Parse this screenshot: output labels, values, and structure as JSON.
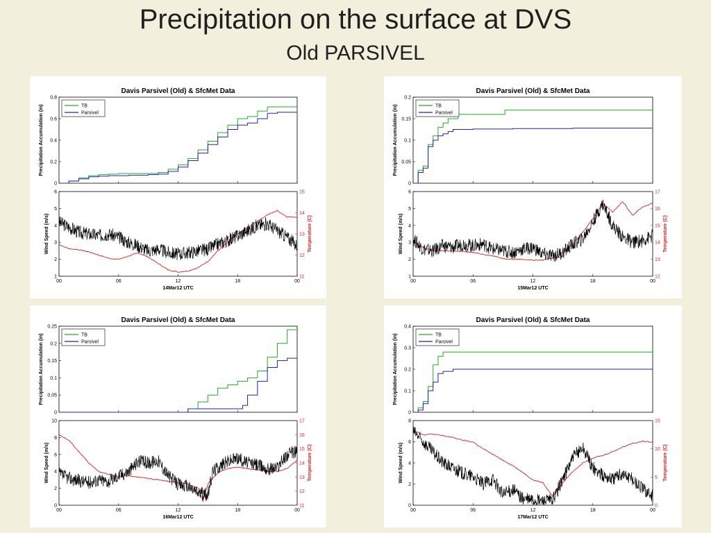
{
  "slide": {
    "title": "Precipitation on the surface at DVS",
    "subtitle": "Old PARSIVEL"
  },
  "colors": {
    "tb": "#20b020",
    "parsivel": "#2020c0",
    "wind": "#000000",
    "temp": "#e02020",
    "background": "#f2f0dc"
  },
  "chart_data": [
    {
      "type": "line",
      "title": "Davis Parsivel (Old) & SfcMet Data",
      "date_label": "14Mar12 UTC",
      "legend": [
        "TB",
        "Parsivel"
      ],
      "legend_position": "top-left",
      "x_ticks": [
        "00",
        "06",
        "12",
        "18",
        "00"
      ],
      "xlim": [
        0,
        24
      ],
      "top": {
        "ylabel": "Precipitation Accumulation (in)",
        "ylim": [
          0,
          0.8
        ],
        "yticks": [
          "0",
          "0.2",
          "0.4",
          "0.6",
          "0.8"
        ],
        "series": [
          {
            "name": "TB",
            "x": [
              0,
              1,
              2,
              3,
              4,
              5,
              6,
              7,
              8,
              9,
              10,
              11,
              12,
              13,
              14,
              15,
              16,
              17,
              18,
              19,
              20,
              21,
              22,
              23,
              24
            ],
            "values": [
              0,
              0.02,
              0.05,
              0.07,
              0.08,
              0.085,
              0.09,
              0.09,
              0.09,
              0.09,
              0.1,
              0.13,
              0.17,
              0.23,
              0.31,
              0.39,
              0.47,
              0.54,
              0.6,
              0.62,
              0.67,
              0.71,
              0.71,
              0.71,
              0.71
            ]
          },
          {
            "name": "Parsivel",
            "x": [
              0,
              1,
              2,
              3,
              4,
              5,
              6,
              7,
              8,
              9,
              10,
              11,
              12,
              13,
              14,
              15,
              16,
              17,
              18,
              19,
              20,
              21,
              22,
              23,
              24
            ],
            "values": [
              0,
              0.02,
              0.04,
              0.06,
              0.065,
              0.07,
              0.07,
              0.075,
              0.075,
              0.08,
              0.085,
              0.11,
              0.15,
              0.21,
              0.28,
              0.36,
              0.43,
              0.5,
              0.54,
              0.56,
              0.6,
              0.65,
              0.66,
              0.66,
              0.66
            ]
          }
        ]
      },
      "bottom": {
        "ylabel": "Wind Speed (m/s)",
        "ylim": [
          1,
          6
        ],
        "yticks": [
          "1",
          "2",
          "3",
          "4",
          "5",
          "6"
        ],
        "y2label": "Temperature (C)",
        "y2lim": [
          11,
          15
        ],
        "y2ticks": [
          "11",
          "12",
          "13",
          "14",
          "15"
        ],
        "wind": {
          "x": [
            0,
            1,
            2,
            3,
            4,
            5,
            6,
            7,
            8,
            9,
            10,
            11,
            12,
            13,
            14,
            15,
            16,
            17,
            18,
            19,
            20,
            21,
            22,
            23,
            24
          ],
          "values": [
            4.2,
            3.9,
            3.6,
            3.5,
            3.4,
            3.5,
            3.3,
            3.0,
            2.8,
            2.5,
            2.6,
            2.4,
            2.3,
            2.4,
            2.5,
            2.6,
            2.9,
            3.1,
            3.4,
            3.7,
            4.0,
            4.1,
            3.7,
            3.3,
            2.8
          ]
        },
        "temp": {
          "x": [
            0,
            1,
            2,
            3,
            4,
            5,
            6,
            7,
            8,
            9,
            10,
            11,
            12,
            13,
            14,
            15,
            16,
            17,
            18,
            19,
            20,
            21,
            22,
            23,
            24
          ],
          "values": [
            12.5,
            12.3,
            12.25,
            12.15,
            12.0,
            11.85,
            11.8,
            11.95,
            12.1,
            11.9,
            11.6,
            11.3,
            11.2,
            11.25,
            11.4,
            11.7,
            12.2,
            12.6,
            13.0,
            13.3,
            13.6,
            13.9,
            14.1,
            13.8,
            13.8
          ]
        }
      }
    },
    {
      "type": "line",
      "title": "Davis Parsivel (Old) & SfcMet Data",
      "date_label": "15Mar12 UTC",
      "legend": [
        "TB",
        "Parsivel"
      ],
      "legend_position": "top-left",
      "x_ticks": [
        "00",
        "06",
        "12",
        "18",
        "00"
      ],
      "xlim": [
        0,
        24
      ],
      "top": {
        "ylabel": "Precipitation Accumulation (in)",
        "ylim": [
          0,
          0.2
        ],
        "yticks": [
          "0",
          "0.05",
          "0.1",
          "0.15",
          "0.2"
        ],
        "series": [
          {
            "name": "TB",
            "x": [
              0,
              0.5,
              1,
              1.5,
              2,
              2.5,
              3,
              3.5,
              4,
              4.5,
              5,
              9,
              9.2,
              24
            ],
            "values": [
              0,
              0.03,
              0.04,
              0.09,
              0.11,
              0.13,
              0.14,
              0.15,
              0.15,
              0.16,
              0.16,
              0.16,
              0.17,
              0.17
            ]
          },
          {
            "name": "Parsivel",
            "x": [
              0,
              0.5,
              1,
              1.5,
              2,
              2.5,
              3,
              3.5,
              4,
              6,
              10,
              16,
              24
            ],
            "values": [
              0,
              0.025,
              0.035,
              0.085,
              0.1,
              0.11,
              0.115,
              0.12,
              0.125,
              0.126,
              0.127,
              0.128,
              0.128
            ]
          }
        ]
      },
      "bottom": {
        "ylabel": "Wind Speed (m/s)",
        "ylim": [
          1,
          6
        ],
        "yticks": [
          "1",
          "2",
          "3",
          "4",
          "5",
          "6"
        ],
        "y2label": "Temperature (C)",
        "y2lim": [
          12,
          17
        ],
        "y2ticks": [
          "12",
          "13",
          "14",
          "15",
          "16",
          "17"
        ],
        "wind": {
          "x": [
            0,
            1,
            2,
            3,
            4,
            5,
            6,
            7,
            8,
            9,
            10,
            11,
            12,
            13,
            14,
            15,
            16,
            17,
            18,
            19,
            20,
            21,
            22,
            23,
            24
          ],
          "values": [
            3.2,
            2.6,
            2.5,
            2.8,
            2.7,
            2.9,
            2.8,
            2.9,
            2.6,
            2.5,
            2.4,
            2.6,
            2.7,
            2.3,
            2.2,
            2.4,
            2.9,
            3.2,
            4.2,
            5.3,
            4.0,
            3.3,
            3.0,
            3.1,
            3.4
          ]
        },
        "temp": {
          "x": [
            0,
            1,
            2,
            3,
            4,
            5,
            6,
            7,
            8,
            9,
            10,
            11,
            12,
            13,
            14,
            15,
            16,
            17,
            18,
            19,
            20,
            21,
            22,
            23,
            24
          ],
          "values": [
            14.0,
            13.7,
            13.5,
            13.5,
            13.5,
            13.45,
            13.4,
            13.3,
            13.2,
            13.05,
            13.0,
            13.0,
            12.95,
            12.95,
            13.1,
            13.4,
            13.9,
            14.6,
            15.4,
            16.3,
            15.8,
            16.4,
            15.6,
            16.1,
            16.3
          ]
        }
      }
    },
    {
      "type": "line",
      "title": "Davis Parsivel (Old) & SfcMet Data",
      "date_label": "16Mar12 UTC",
      "legend": [
        "TB",
        "Parsivel"
      ],
      "legend_position": "top-left",
      "x_ticks": [
        "00",
        "06",
        "12",
        "18",
        "00"
      ],
      "xlim": [
        0,
        24
      ],
      "top": {
        "ylabel": "Precipitation Accumulation (in)",
        "ylim": [
          0,
          0.25
        ],
        "yticks": [
          "0",
          "0.05",
          "0.1",
          "0.15",
          "0.2",
          "0.25"
        ],
        "series": [
          {
            "name": "TB",
            "x": [
              0,
              12,
              13,
              13.5,
              14,
              15,
              16,
              17,
              18,
              19,
              20,
              21,
              22,
              23,
              24
            ],
            "values": [
              0,
              0,
              0.01,
              0.01,
              0.03,
              0.05,
              0.07,
              0.08,
              0.09,
              0.1,
              0.12,
              0.16,
              0.2,
              0.24,
              0.24
            ]
          },
          {
            "name": "Parsivel",
            "x": [
              0,
              12,
              13,
              15,
              18,
              18.5,
              19,
              20,
              21,
              22,
              23,
              24
            ],
            "values": [
              0,
              0,
              0.01,
              0.01,
              0.01,
              0.02,
              0.05,
              0.09,
              0.13,
              0.15,
              0.157,
              0.158
            ]
          }
        ]
      },
      "bottom": {
        "ylabel": "Wind Speed (m/s)",
        "ylim": [
          0,
          10
        ],
        "yticks": [
          "0",
          "2",
          "4",
          "6",
          "8",
          "10"
        ],
        "y2label": "Temperature (C)",
        "y2lim": [
          11,
          17
        ],
        "y2ticks": [
          "11",
          "12",
          "13",
          "14",
          "15",
          "16",
          "17"
        ],
        "wind": {
          "x": [
            0,
            1,
            2,
            3,
            4,
            5,
            6,
            7,
            8,
            9,
            10,
            11,
            12,
            13,
            14,
            15,
            15.5,
            16,
            17,
            18,
            19,
            20,
            21,
            22,
            23,
            24
          ],
          "values": [
            3.7,
            3.2,
            2.9,
            2.7,
            3.0,
            2.8,
            3.5,
            4.0,
            5.2,
            5.0,
            5.3,
            3.5,
            2.5,
            2.2,
            1.5,
            1.2,
            4.0,
            4.5,
            5.2,
            5.6,
            5.0,
            4.8,
            4.3,
            4.5,
            6.0,
            6.4
          ]
        },
        "temp": {
          "x": [
            0,
            1,
            2,
            3,
            4,
            5,
            6,
            7,
            8,
            9,
            10,
            11,
            12,
            13,
            14,
            14.5,
            15,
            16,
            17,
            18,
            19,
            20,
            21,
            22,
            23,
            24
          ],
          "values": [
            16.0,
            15.6,
            14.8,
            14.0,
            13.4,
            13.2,
            13.0,
            13.1,
            13.0,
            12.9,
            12.8,
            12.7,
            12.6,
            12.5,
            12.2,
            11.3,
            12.5,
            13.3,
            13.6,
            13.7,
            13.6,
            13.5,
            13.4,
            13.4,
            13.6,
            14.2
          ]
        }
      }
    },
    {
      "type": "line",
      "title": "Davis Parsivel (Old) & SfcMet Data",
      "date_label": "17Mar12 UTC",
      "legend": [
        "TB",
        "Parsivel"
      ],
      "legend_position": "top-left",
      "x_ticks": [
        "00",
        "06",
        "12",
        "18",
        "00"
      ],
      "xlim": [
        0,
        24
      ],
      "top": {
        "ylabel": "Precipitation Accumulation (in)",
        "ylim": [
          0,
          0.4
        ],
        "yticks": [
          "0",
          "0.1",
          "0.2",
          "0.3",
          "0.4"
        ],
        "series": [
          {
            "name": "TB",
            "x": [
              0,
              0.5,
              1,
              1.5,
              2,
              2.5,
              3,
              4,
              24
            ],
            "values": [
              0,
              0.02,
              0.05,
              0.12,
              0.22,
              0.26,
              0.28,
              0.28,
              0.28
            ]
          },
          {
            "name": "Parsivel",
            "x": [
              0,
              0.5,
              1,
              1.5,
              2,
              2.5,
              3,
              4,
              6,
              24
            ],
            "values": [
              0,
              0.01,
              0.04,
              0.1,
              0.14,
              0.18,
              0.19,
              0.2,
              0.2,
              0.2
            ]
          }
        ]
      },
      "bottom": {
        "ylabel": "Wind Speed (m/s)",
        "ylim": [
          0,
          8
        ],
        "yticks": [
          "0",
          "2",
          "4",
          "6",
          "8"
        ],
        "y2label": "Temperature (C)",
        "y2lim": [
          0,
          15
        ],
        "y2ticks": [
          "0",
          "5",
          "10",
          "15"
        ],
        "wind": {
          "x": [
            0,
            1,
            2,
            3,
            4,
            5,
            6,
            7,
            8,
            9,
            10,
            11,
            12,
            13,
            14,
            15,
            16,
            17,
            18,
            19,
            20,
            21,
            22,
            23,
            24
          ],
          "values": [
            7.0,
            6.0,
            5.0,
            4.0,
            3.5,
            3.0,
            2.7,
            2.0,
            2.5,
            1.0,
            1.5,
            0.6,
            0.5,
            0.4,
            0.5,
            2.5,
            4.5,
            5.5,
            3.5,
            2.8,
            2.5,
            3.0,
            2.4,
            1.6,
            0.9
          ]
        },
        "temp": {
          "x": [
            0,
            1,
            2,
            3,
            4,
            5,
            6,
            7,
            8,
            9,
            10,
            11,
            12,
            13,
            14,
            15,
            16,
            17,
            18,
            19,
            20,
            21,
            22,
            23,
            24
          ],
          "values": [
            13.3,
            12.5,
            12.6,
            12.3,
            12.0,
            11.5,
            11.2,
            10.0,
            9.0,
            8.0,
            7.0,
            5.8,
            4.5,
            4.0,
            1.5,
            4.0,
            6.0,
            7.5,
            8.4,
            8.8,
            9.5,
            10.3,
            11.0,
            11.3,
            11.2
          ]
        }
      }
    }
  ]
}
